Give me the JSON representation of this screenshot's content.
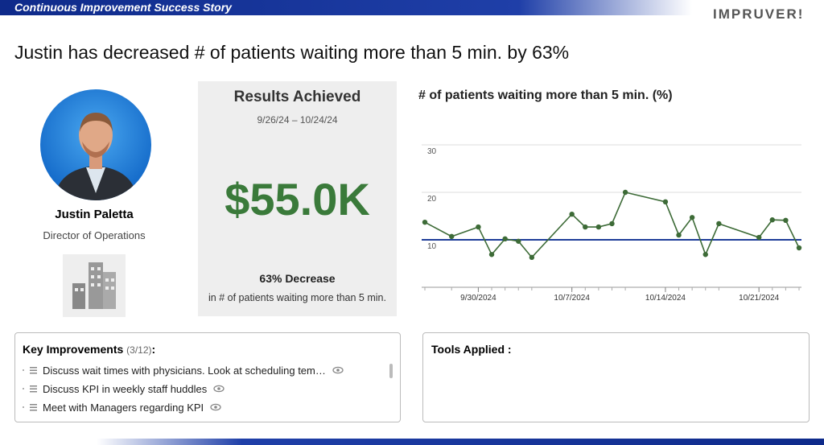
{
  "header": {
    "banner": "Continuous Improvement Success Story",
    "logo": "IMPRUVER!"
  },
  "headline": "Justin has decreased # of patients waiting more than 5 min. by 63%",
  "profile": {
    "name": "Justin Paletta",
    "role": "Director of Operations"
  },
  "results": {
    "title": "Results Achieved",
    "period": "9/26/24 – 10/24/24",
    "amount": "$55.0K",
    "change": "63% Decrease",
    "change_detail": "in # of patients waiting more than 5 min."
  },
  "chart_data": {
    "type": "line",
    "title": "# of patients waiting more than 5 min. (%)",
    "x": [
      "2024-09-26",
      "2024-09-28",
      "2024-09-30",
      "2024-10-01",
      "2024-10-02",
      "2024-10-03",
      "2024-10-04",
      "2024-10-07",
      "2024-10-08",
      "2024-10-09",
      "2024-10-10",
      "2024-10-11",
      "2024-10-14",
      "2024-10-15",
      "2024-10-16",
      "2024-10-17",
      "2024-10-18",
      "2024-10-21",
      "2024-10-22",
      "2024-10-23",
      "2024-10-24"
    ],
    "series": [
      {
        "color": "#3d6b37",
        "values": [
          13.7,
          10.7,
          12.7,
          6.9,
          10.2,
          9.7,
          6.3,
          15.4,
          12.7,
          12.7,
          13.4,
          20,
          18,
          11,
          14.7,
          6.9,
          13.4,
          10.5,
          14.2,
          14.1,
          8.3
        ]
      }
    ],
    "reference_line": 10,
    "reference_color": "#1f3d99",
    "xlim": [
      "2024-09-26",
      "2024-10-24"
    ],
    "xticks": [
      {
        "value": "2024-09-30",
        "label": "9/30/2024"
      },
      {
        "value": "2024-10-07",
        "label": "10/7/2024"
      },
      {
        "value": "2024-10-14",
        "label": "10/14/2024"
      },
      {
        "value": "2024-10-21",
        "label": "10/21/2024"
      }
    ],
    "ylim": [
      0,
      30
    ],
    "yticks": [
      10,
      20,
      30
    ],
    "grid": true
  },
  "key_improvements": {
    "title": "Key Improvements",
    "count": "(3/12)",
    "separator": ":",
    "items": [
      "Discuss wait times with physicians. Look at scheduling tem…",
      "Discuss KPI in weekly staff huddles",
      "Meet with Managers regarding KPI"
    ]
  },
  "tools": {
    "title": "Tools Applied :"
  }
}
